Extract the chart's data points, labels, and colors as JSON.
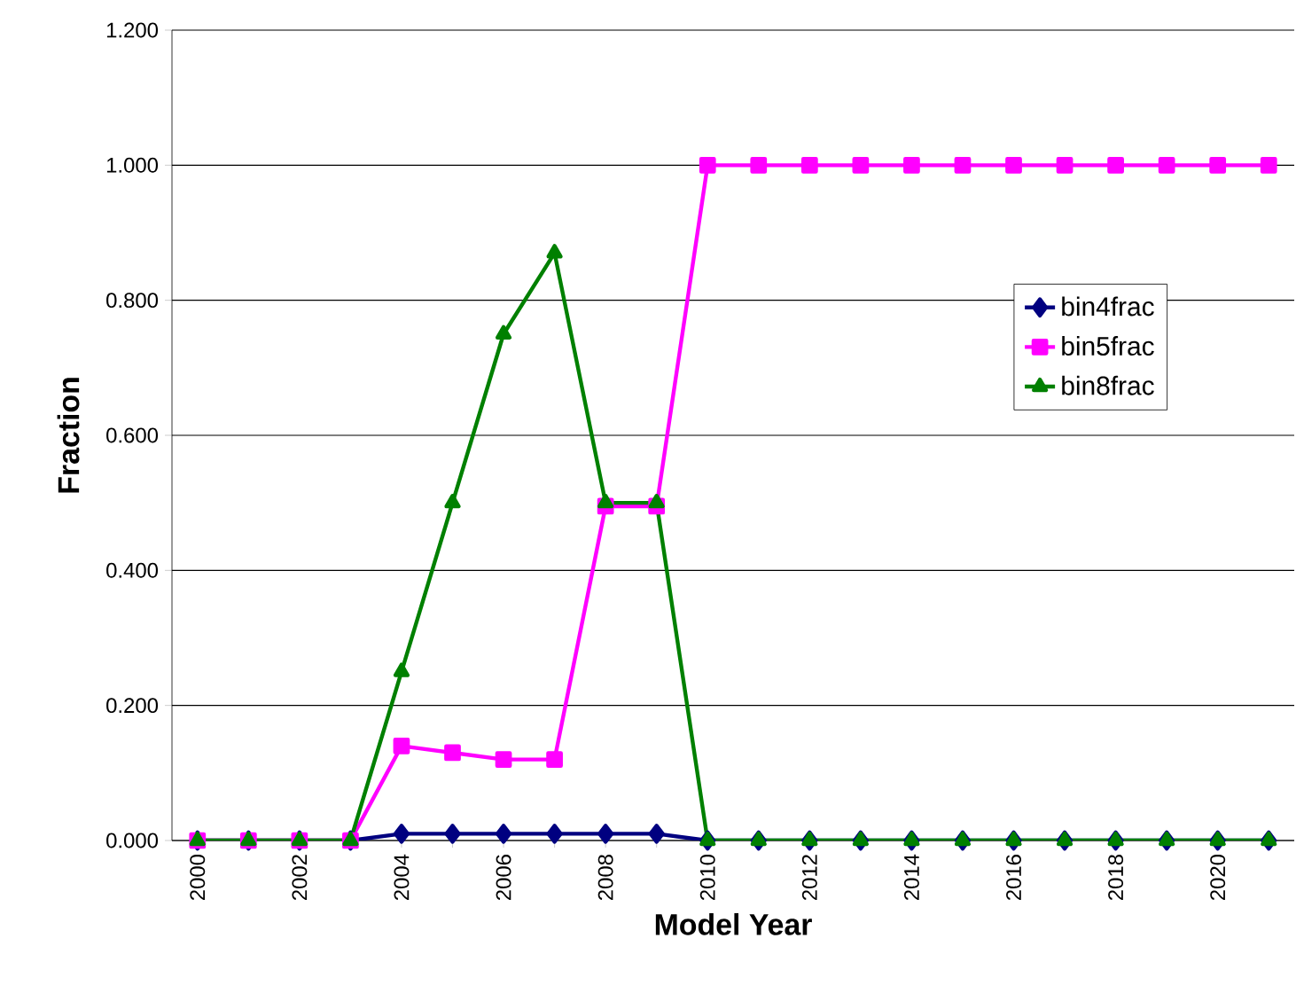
{
  "chart_data": {
    "type": "line",
    "xlabel": "Model Year",
    "ylabel": "Fraction",
    "categories": [
      "2000",
      null,
      "2002",
      null,
      "2004",
      null,
      "2006",
      null,
      "2008",
      null,
      "2010",
      null,
      "2012",
      null,
      "2014",
      null,
      "2016",
      null,
      "2018",
      null,
      "2020",
      null
    ],
    "series": [
      {
        "name": "bin4frac",
        "color": "#000080",
        "marker": "diamond",
        "values": [
          0,
          0,
          0,
          0,
          0.01,
          0.01,
          0.01,
          0.01,
          0.01,
          0.01,
          0,
          0,
          0,
          0,
          0,
          0,
          0,
          0,
          0,
          0,
          0,
          0
        ]
      },
      {
        "name": "bin5frac",
        "color": "#ff00ff",
        "marker": "square",
        "values": [
          0,
          0,
          0,
          0,
          0.14,
          0.13,
          0.12,
          0.12,
          0.495,
          0.495,
          1,
          1,
          1,
          1,
          1,
          1,
          1,
          1,
          1,
          1,
          1,
          1
        ]
      },
      {
        "name": "bin8frac",
        "color": "#008000",
        "marker": "triangle",
        "values": [
          0,
          0,
          0,
          0,
          0.25,
          0.5,
          0.75,
          0.87,
          0.5,
          0.5,
          0,
          0,
          0,
          0,
          0,
          0,
          0,
          0,
          0,
          0,
          0,
          0
        ]
      }
    ],
    "ylim": [
      0,
      1.2
    ],
    "yticks": [
      {
        "value": 0,
        "label": "0.000"
      },
      {
        "value": 0.2,
        "label": "0.200"
      },
      {
        "value": 0.4,
        "label": "0.400"
      },
      {
        "value": 0.6,
        "label": "0.600"
      },
      {
        "value": 0.8,
        "label": "0.800"
      },
      {
        "value": 1,
        "label": "1.000"
      },
      {
        "value": 1.2,
        "label": "1.200"
      }
    ],
    "grid": "y",
    "legend": "right",
    "line_style": "solid"
  }
}
